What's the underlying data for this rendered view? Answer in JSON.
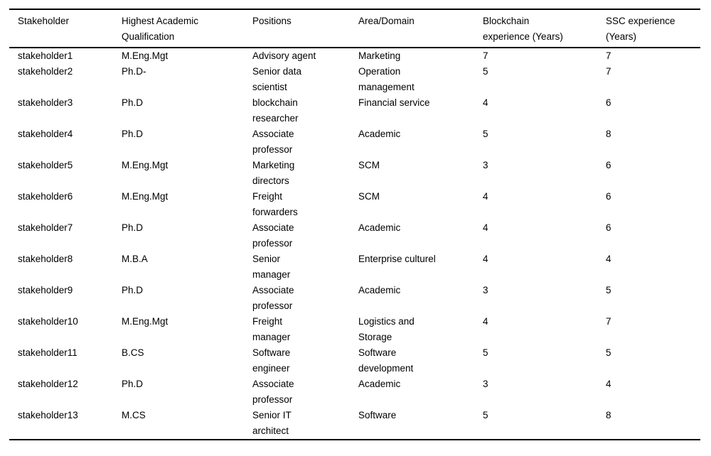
{
  "table": {
    "columns": [
      "Stakeholder",
      "Highest Academic\nQualification",
      "Positions",
      "Area/Domain",
      "Blockchain\nexperience (Years)",
      "SSC experience\n(Years)"
    ],
    "rows": [
      [
        "stakeholder1",
        "M.Eng.Mgt",
        "Advisory agent",
        "Marketing",
        "7",
        "7"
      ],
      [
        "stakeholder2",
        "Ph.D-",
        "Senior data\nscientist",
        "Operation\nmanagement",
        "5",
        "7"
      ],
      [
        "stakeholder3",
        "Ph.D",
        "blockchain\nresearcher",
        "Financial service",
        "4",
        "6"
      ],
      [
        "stakeholder4",
        "Ph.D",
        "Associate\nprofessor",
        "Academic",
        "5",
        "8"
      ],
      [
        "stakeholder5",
        "M.Eng.Mgt",
        "Marketing\ndirectors",
        "SCM",
        "3",
        "6"
      ],
      [
        "stakeholder6",
        "M.Eng.Mgt",
        "Freight\nforwarders",
        "SCM",
        "4",
        "6"
      ],
      [
        "stakeholder7",
        "Ph.D",
        "Associate\nprofessor",
        "Academic",
        "4",
        "6"
      ],
      [
        "stakeholder8",
        "M.B.A",
        "Senior\nmanager",
        "Enterprise culturel",
        "4",
        "4"
      ],
      [
        "stakeholder9",
        "Ph.D",
        "Associate\nprofessor",
        "Academic",
        "3",
        "5"
      ],
      [
        "stakeholder10",
        "M.Eng.Mgt",
        "Freight\nmanager",
        "Logistics and\nStorage",
        "4",
        "7"
      ],
      [
        "stakeholder11",
        "B.CS",
        "Software\nengineer",
        "Software\ndevelopment",
        "5",
        "5"
      ],
      [
        "stakeholder12",
        "Ph.D",
        "Associate\nprofessor",
        "Academic",
        "3",
        "4"
      ],
      [
        "stakeholder13",
        "M.CS",
        "Senior IT\narchitect",
        "Software",
        "5",
        "8"
      ]
    ],
    "colors": {
      "rule": "#000000",
      "text": "#000000",
      "background": "#ffffff"
    }
  }
}
